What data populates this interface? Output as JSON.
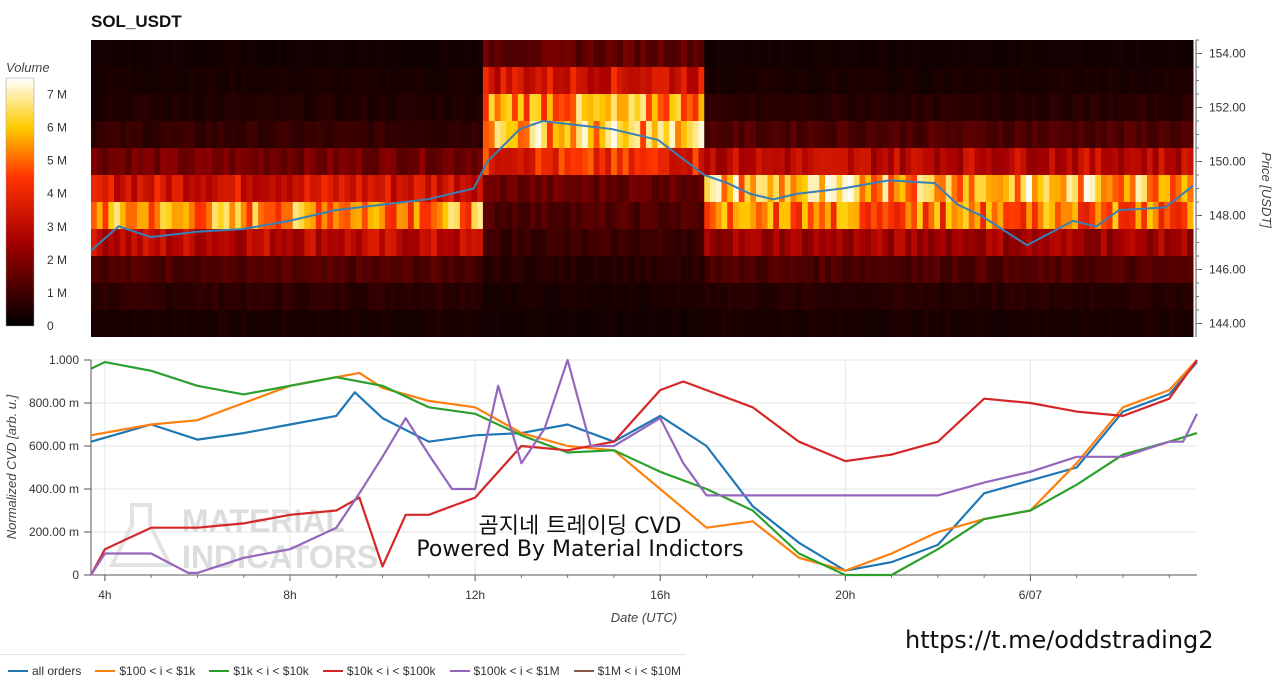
{
  "title": "SOL_USDT",
  "colorbar": {
    "label": "Volume",
    "ticks": [
      "7 M",
      "6 M",
      "5 M",
      "4 M",
      "3 M",
      "2 M",
      "1 M",
      "0"
    ]
  },
  "heatmap_axis": {
    "label": "Price [USDT]",
    "ticks": [
      "154.00",
      "152.00",
      "150.00",
      "148.00",
      "146.00",
      "144.00"
    ]
  },
  "cvd_axis": {
    "label": "Normalized CVD [arb. u.]",
    "ticks": [
      "1.000",
      "800.00 m",
      "600.00 m",
      "400.00 m",
      "200.00 m",
      "0"
    ]
  },
  "x_axis": {
    "label": "Date (UTC)",
    "ticks": [
      "4h",
      "8h",
      "12h",
      "16h",
      "20h",
      "6/07"
    ]
  },
  "watermark": {
    "line1": "MATERIAL",
    "line2": "INDICATORS"
  },
  "credit": {
    "line1": "곰지네 트레이딩 CVD",
    "line2": "Powered By Material Indictors"
  },
  "url": "https://t.me/oddstrading2",
  "legend": [
    {
      "label": "all orders",
      "color": "#1f77b4"
    },
    {
      "label": "$100 < i < $1k",
      "color": "#ff7f0e"
    },
    {
      "label": "$1k < i < $10k",
      "color": "#2ca02c"
    },
    {
      "label": "$10k < i < $100k",
      "color": "#d62728"
    },
    {
      "label": "$100k < i < $1M",
      "color": "#9467bd"
    },
    {
      "label": "$1M < i < $10M",
      "color": "#8c564b"
    }
  ],
  "chart_data": [
    {
      "type": "heatmap",
      "x_range": [
        3.7,
        27.6
      ],
      "y_range": [
        143.5,
        154.5
      ],
      "zlim": [
        0,
        7.5
      ],
      "price_bins": [
        144,
        145,
        146,
        147,
        148,
        149,
        150,
        151,
        152,
        153,
        154
      ],
      "volume_by_segment": [
        {
          "x": [
            3.7,
            12.2
          ],
          "vol": [
            0.4,
            0.7,
            1.2,
            3.0,
            5.5,
            3.5,
            1.8,
            0.8,
            0.5,
            0.4,
            0.3
          ]
        },
        {
          "x": [
            12.2,
            17.0
          ],
          "vol": [
            0.3,
            0.4,
            0.6,
            0.9,
            1.2,
            1.6,
            4.0,
            6.0,
            5.5,
            3.5,
            1.5
          ]
        },
        {
          "x": [
            17.0,
            27.6
          ],
          "vol": [
            0.4,
            0.6,
            1.2,
            2.5,
            5.0,
            6.0,
            3.0,
            1.2,
            0.6,
            0.4,
            0.3
          ]
        }
      ],
      "price_line": {
        "color": "#3a7fb5",
        "x": [
          3.7,
          4.3,
          5,
          6,
          7,
          8,
          9,
          10,
          11,
          12,
          12.3,
          13,
          13.5,
          14,
          15,
          16,
          17,
          17.5,
          18,
          18.5,
          19,
          20,
          21,
          22,
          22.5,
          23,
          24,
          25,
          25.5,
          26,
          27,
          27.6
        ],
        "y": [
          146.7,
          147.6,
          147.2,
          147.4,
          147.5,
          147.8,
          148.2,
          148.4,
          148.6,
          149.0,
          150.0,
          151.2,
          151.5,
          151.4,
          151.2,
          150.8,
          149.5,
          149.2,
          148.8,
          148.6,
          148.8,
          149.0,
          149.3,
          149.2,
          148.4,
          148.0,
          146.9,
          147.8,
          147.6,
          148.2,
          148.3,
          149.1
        ]
      },
      "ylabel": "Price [USDT]"
    },
    {
      "type": "line",
      "xlabel": "Date (UTC)",
      "ylabel": "Normalized CVD [arb. u.]",
      "ylim": [
        0,
        1.0
      ],
      "xlim": [
        3.7,
        27.6
      ],
      "series": [
        {
          "name": "all orders",
          "color": "#1f77b4",
          "x": [
            3.7,
            5,
            6,
            7,
            8,
            9,
            9.4,
            10,
            11,
            12,
            13,
            14,
            15,
            16,
            17,
            18,
            19,
            20,
            21,
            22,
            23,
            24,
            25,
            26,
            27,
            27.6
          ],
          "y": [
            0.62,
            0.7,
            0.63,
            0.66,
            0.7,
            0.74,
            0.85,
            0.73,
            0.62,
            0.65,
            0.66,
            0.7,
            0.62,
            0.74,
            0.6,
            0.32,
            0.15,
            0.02,
            0.06,
            0.14,
            0.38,
            0.44,
            0.5,
            0.76,
            0.84,
            0.99
          ]
        },
        {
          "name": "$100 < i < $1k",
          "color": "#ff7f0e",
          "x": [
            3.7,
            5,
            6,
            7,
            8,
            9,
            9.5,
            10,
            11,
            12,
            13,
            14,
            15,
            16,
            17,
            18,
            19,
            20,
            21,
            22,
            23,
            24,
            25,
            26,
            27,
            27.6
          ],
          "y": [
            0.65,
            0.7,
            0.72,
            0.8,
            0.88,
            0.92,
            0.94,
            0.87,
            0.81,
            0.78,
            0.66,
            0.6,
            0.58,
            0.4,
            0.22,
            0.25,
            0.08,
            0.02,
            0.1,
            0.2,
            0.26,
            0.3,
            0.52,
            0.78,
            0.86,
            1.0
          ]
        },
        {
          "name": "$1k < i < $10k",
          "color": "#2ca02c",
          "x": [
            3.7,
            4,
            5,
            6,
            7,
            8,
            9,
            10,
            11,
            12,
            13,
            14,
            15,
            16,
            17,
            18,
            19,
            20,
            21,
            22,
            23,
            24,
            25,
            26,
            27,
            27.6
          ],
          "y": [
            0.96,
            0.99,
            0.95,
            0.88,
            0.84,
            0.88,
            0.92,
            0.88,
            0.78,
            0.75,
            0.65,
            0.57,
            0.58,
            0.48,
            0.4,
            0.3,
            0.1,
            0.0,
            0.0,
            0.12,
            0.26,
            0.3,
            0.42,
            0.56,
            0.62,
            0.66
          ]
        },
        {
          "name": "$10k < i < $100k",
          "color": "#d62728",
          "x": [
            3.7,
            4,
            5,
            6,
            7,
            8,
            9,
            9.5,
            10,
            10.5,
            11,
            12,
            13,
            14,
            15,
            16,
            16.5,
            17,
            18,
            19,
            20,
            21,
            22,
            23,
            24,
            25,
            26,
            27,
            27.6
          ],
          "y": [
            0.0,
            0.12,
            0.22,
            0.22,
            0.24,
            0.28,
            0.3,
            0.36,
            0.04,
            0.28,
            0.28,
            0.36,
            0.6,
            0.58,
            0.62,
            0.86,
            0.9,
            0.86,
            0.78,
            0.62,
            0.53,
            0.56,
            0.62,
            0.82,
            0.8,
            0.76,
            0.74,
            0.82,
            1.0
          ]
        },
        {
          "name": "$100k < i < $1M",
          "color": "#9467bd",
          "x": [
            3.7,
            4,
            5,
            5.8,
            6,
            7,
            8,
            9,
            9.5,
            10,
            10.5,
            11,
            11.5,
            12,
            12.5,
            13,
            13.5,
            14,
            14.5,
            15,
            16,
            16.5,
            17,
            18,
            19,
            20,
            21,
            22,
            23,
            24,
            25,
            26,
            27,
            27.3,
            27.6
          ],
          "y": [
            0.0,
            0.1,
            0.1,
            0.01,
            0.01,
            0.08,
            0.12,
            0.22,
            0.38,
            0.55,
            0.73,
            0.56,
            0.4,
            0.4,
            0.88,
            0.52,
            0.68,
            1.0,
            0.6,
            0.6,
            0.73,
            0.52,
            0.37,
            0.37,
            0.37,
            0.37,
            0.37,
            0.37,
            0.43,
            0.48,
            0.55,
            0.55,
            0.62,
            0.62,
            0.75
          ]
        },
        {
          "name": "$1M < i < $10M",
          "color": "#8c564b",
          "x": [],
          "y": []
        }
      ]
    }
  ]
}
